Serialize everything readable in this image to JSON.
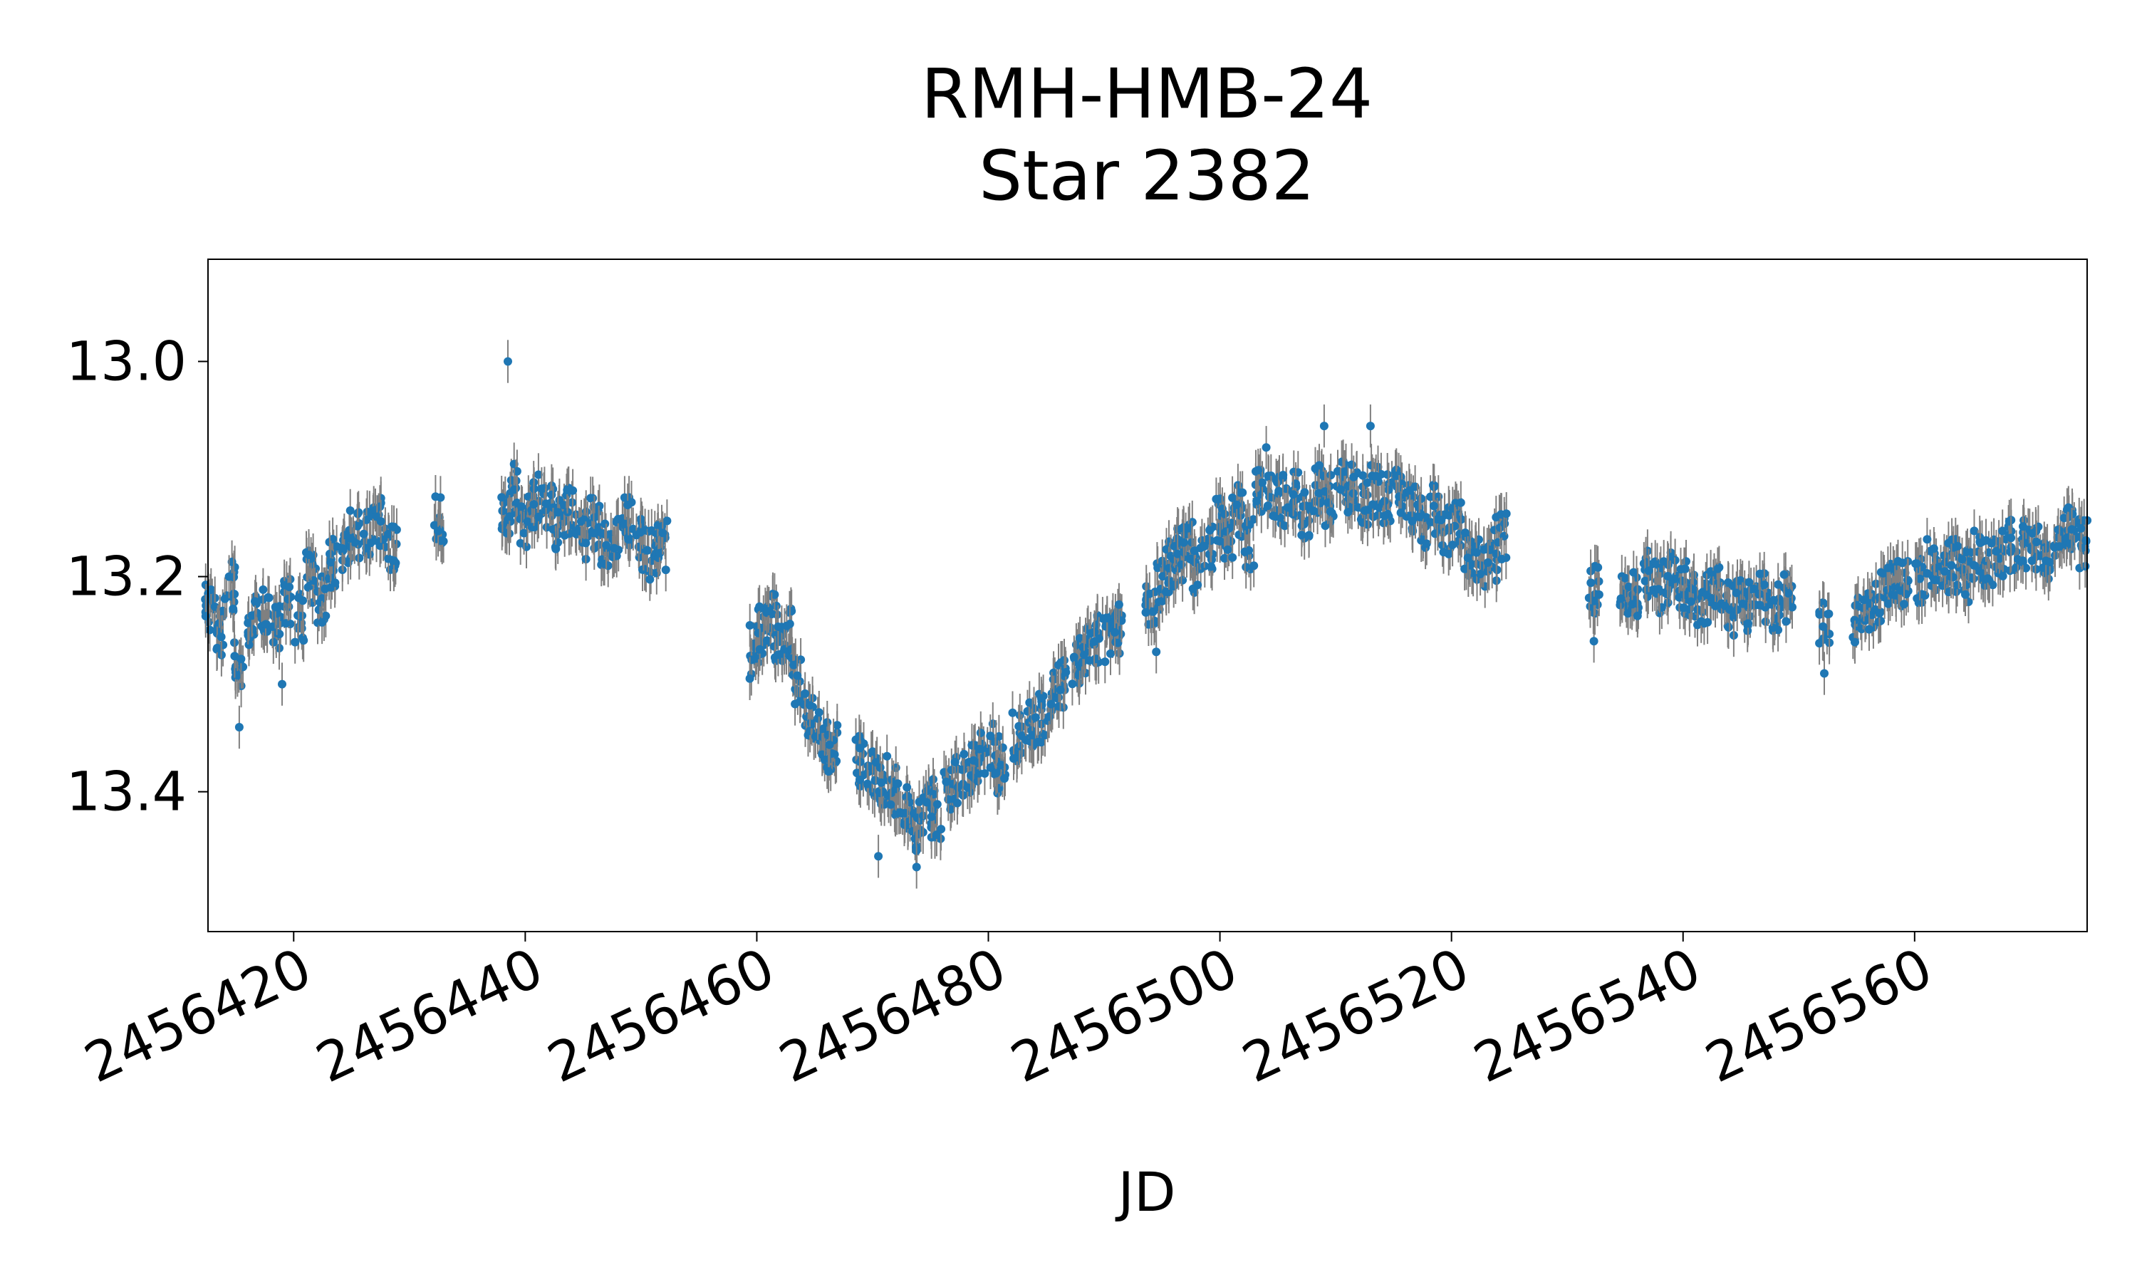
{
  "chart_data": {
    "type": "scatter",
    "title": [
      "RMH-HMB-24",
      "Star 2382"
    ],
    "xlabel": "JD",
    "ylabel": "",
    "xlim": [
      2456412.6,
      2456574.9
    ],
    "ylim": [
      13.53,
      12.905
    ],
    "y_inverted": true,
    "grid": false,
    "legend": "none",
    "marker_color": "#1f77b4",
    "errorbar_color": "#808080",
    "x_ticks": [
      2456420,
      2456440,
      2456460,
      2456480,
      2456500,
      2456520,
      2456540,
      2456560
    ],
    "x_tick_labels": [
      "2456420",
      "2456440",
      "2456460",
      "2456480",
      "2456500",
      "2456520",
      "2456540",
      "2456560"
    ],
    "y_ticks": [
      13.0,
      13.2,
      13.4
    ],
    "y_tick_labels": [
      "13.0",
      "13.2",
      "13.4"
    ],
    "series": [
      {
        "points": [
          [
            2456412.8,
            13.23
          ],
          [
            2456413.5,
            13.25
          ],
          [
            2456414.5,
            13.21
          ],
          [
            2456415.3,
            13.28
          ],
          [
            2456416.5,
            13.24
          ],
          [
            2456417.5,
            13.23
          ],
          [
            2456418.5,
            13.25
          ],
          [
            2456419.5,
            13.22
          ],
          [
            2456420.5,
            13.24
          ],
          [
            2456421.5,
            13.2
          ],
          [
            2456422.5,
            13.22
          ],
          [
            2456423.5,
            13.19
          ],
          [
            2456424.5,
            13.17
          ],
          [
            2456425.3,
            13.16
          ],
          [
            2456426.5,
            13.16
          ],
          [
            2456427.5,
            13.15
          ],
          [
            2456428.5,
            13.17
          ],
          [
            2456432.5,
            13.15
          ],
          [
            2456438.3,
            13.14
          ],
          [
            2456439.0,
            13.12
          ],
          [
            2456440.0,
            13.15
          ],
          [
            2456441.0,
            13.13
          ],
          [
            2456442.0,
            13.14
          ],
          [
            2456443.0,
            13.15
          ],
          [
            2456444.0,
            13.14
          ],
          [
            2456445.0,
            13.16
          ],
          [
            2456446.0,
            13.15
          ],
          [
            2456447.0,
            13.17
          ],
          [
            2456448.0,
            13.16
          ],
          [
            2456449.0,
            13.15
          ],
          [
            2456450.0,
            13.17
          ],
          [
            2456451.0,
            13.18
          ],
          [
            2456451.8,
            13.17
          ],
          [
            2456459.8,
            13.27
          ],
          [
            2456460.5,
            13.25
          ],
          [
            2456461.3,
            13.24
          ],
          [
            2456462.0,
            13.26
          ],
          [
            2456462.8,
            13.25
          ],
          [
            2456463.5,
            13.3
          ],
          [
            2456464.5,
            13.33
          ],
          [
            2456465.5,
            13.35
          ],
          [
            2456466.5,
            13.36
          ],
          [
            2456469.0,
            13.37
          ],
          [
            2456470.0,
            13.38
          ],
          [
            2456471.0,
            13.39
          ],
          [
            2456472.0,
            13.4
          ],
          [
            2456473.0,
            13.42
          ],
          [
            2456474.0,
            13.43
          ],
          [
            2456474.8,
            13.41
          ],
          [
            2456475.5,
            13.42
          ],
          [
            2456476.5,
            13.4
          ],
          [
            2456477.5,
            13.39
          ],
          [
            2456478.5,
            13.38
          ],
          [
            2456479.5,
            13.37
          ],
          [
            2456480.5,
            13.36
          ],
          [
            2456481.0,
            13.38
          ],
          [
            2456482.5,
            13.35
          ],
          [
            2456483.5,
            13.34
          ],
          [
            2456484.5,
            13.33
          ],
          [
            2456485.5,
            13.31
          ],
          [
            2456486.5,
            13.3
          ],
          [
            2456487.5,
            13.28
          ],
          [
            2456488.5,
            13.27
          ],
          [
            2456489.5,
            13.26
          ],
          [
            2456490.5,
            13.26
          ],
          [
            2456491.2,
            13.25
          ],
          [
            2456494.0,
            13.22
          ],
          [
            2456495.0,
            13.21
          ],
          [
            2456495.8,
            13.19
          ],
          [
            2456496.5,
            13.18
          ],
          [
            2456497.3,
            13.17
          ],
          [
            2456498.0,
            13.19
          ],
          [
            2456499.0,
            13.17
          ],
          [
            2456500.0,
            13.15
          ],
          [
            2456500.8,
            13.16
          ],
          [
            2456501.5,
            13.14
          ],
          [
            2456502.5,
            13.17
          ],
          [
            2456503.5,
            13.12
          ],
          [
            2456504.5,
            13.12
          ],
          [
            2456505.5,
            13.13
          ],
          [
            2456506.5,
            13.12
          ],
          [
            2456507.5,
            13.14
          ],
          [
            2456508.5,
            13.12
          ],
          [
            2456509.5,
            13.13
          ],
          [
            2456510.5,
            13.11
          ],
          [
            2456511.5,
            13.12
          ],
          [
            2456512.5,
            13.13
          ],
          [
            2456513.5,
            13.12
          ],
          [
            2456514.5,
            13.13
          ],
          [
            2456515.5,
            13.12
          ],
          [
            2456516.5,
            13.14
          ],
          [
            2456517.5,
            13.15
          ],
          [
            2456518.5,
            13.14
          ],
          [
            2456519.5,
            13.16
          ],
          [
            2456520.5,
            13.15
          ],
          [
            2456521.5,
            13.18
          ],
          [
            2456522.5,
            13.19
          ],
          [
            2456523.5,
            13.18
          ],
          [
            2456524.3,
            13.16
          ],
          [
            2456532.3,
            13.21
          ],
          [
            2456535.0,
            13.21
          ],
          [
            2456536.0,
            13.22
          ],
          [
            2456537.0,
            13.2
          ],
          [
            2456538.0,
            13.21
          ],
          [
            2456539.0,
            13.2
          ],
          [
            2456540.0,
            13.21
          ],
          [
            2456541.0,
            13.22
          ],
          [
            2456542.0,
            13.22
          ],
          [
            2456543.0,
            13.21
          ],
          [
            2456544.0,
            13.23
          ],
          [
            2456545.0,
            13.22
          ],
          [
            2456546.0,
            13.23
          ],
          [
            2456547.0,
            13.22
          ],
          [
            2456548.0,
            13.23
          ],
          [
            2456549.0,
            13.22
          ],
          [
            2456552.2,
            13.24
          ],
          [
            2456555.0,
            13.24
          ],
          [
            2456556.0,
            13.23
          ],
          [
            2456557.0,
            13.22
          ],
          [
            2456558.0,
            13.21
          ],
          [
            2456559.0,
            13.21
          ],
          [
            2456560.5,
            13.2
          ],
          [
            2456561.5,
            13.19
          ],
          [
            2456562.5,
            13.19
          ],
          [
            2456563.5,
            13.19
          ],
          [
            2456564.5,
            13.2
          ],
          [
            2456565.5,
            13.18
          ],
          [
            2456566.5,
            13.19
          ],
          [
            2456567.5,
            13.18
          ],
          [
            2456568.5,
            13.17
          ],
          [
            2456569.5,
            13.17
          ],
          [
            2456570.5,
            13.17
          ],
          [
            2456571.5,
            13.18
          ],
          [
            2456572.5,
            13.17
          ],
          [
            2456573.5,
            13.16
          ],
          [
            2456574.5,
            13.17
          ]
        ],
        "error": 0.02,
        "scatter_spread": 0.025,
        "outliers": [
          [
            2456415.3,
            13.34
          ],
          [
            2456419.0,
            13.3
          ],
          [
            2456438.5,
            13.0
          ],
          [
            2456470.5,
            13.46
          ],
          [
            2456473.8,
            13.47
          ],
          [
            2456494.5,
            13.27
          ],
          [
            2456504.0,
            13.08
          ],
          [
            2456509.0,
            13.06
          ],
          [
            2456513.0,
            13.06
          ],
          [
            2456532.3,
            13.26
          ],
          [
            2456552.2,
            13.29
          ]
        ]
      }
    ]
  }
}
